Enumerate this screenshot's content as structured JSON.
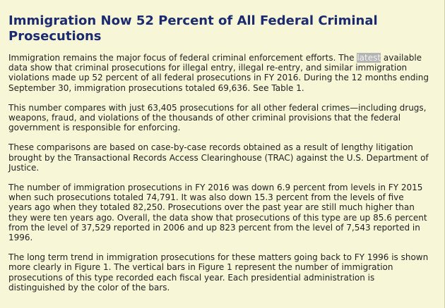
{
  "article": {
    "title": "Immigration Now 52 Percent of All Federal Criminal Prosecutions",
    "p1_before": "Immigration remains the major focus of federal criminal enforcement efforts. The ",
    "p1_highlight": "latest",
    "p1_after": " available data show that criminal prosecutions for illegal entry, illegal re-entry, and similar immigration violations made up 52 percent of all federal prosecutions in FY 2016. During the 12 months ending September 30, immigration prosecutions totaled 69,636. See Table 1.",
    "p2": "This number compares with just 63,405 prosecutions for all other federal crimes—including drugs, weapons, fraud, and violations of the thousands of other criminal provisions that the federal government is responsible for enforcing.",
    "p3": "These comparisons are based on case-by-case records obtained as a result of lengthy litigation brought by the Transactional Records Access Clearinghouse (TRAC) against the U.S. Department of Justice.",
    "p4": "The number of immigration prosecutions in FY 2016 was down 6.9 percent from levels in FY 2015 when such prosecutions totaled 74,791. It was also down 15.3 percent from the levels of five years ago when they totaled 82,250. Prosecutions over the past year are still much higher than they were ten years ago. Overall, the data show that prosecutions of this type are up 85.6 percent from the level of 37,529 reported in 2006 and up 823 percent from the level of 7,543 reported in 1996.",
    "p5": "The long term trend in immigration prosecutions for these matters going back to FY 1996 is shown more clearly in Figure 1. The vertical bars in Figure 1 represent the number of immigration prosecutions of this type recorded each fiscal year. Each presidential administration is distinguished by the color of the bars."
  },
  "colors": {
    "background": "#f7f7d8",
    "title": "#1c2a70",
    "text": "#222222",
    "selection": "#b4b4b4"
  }
}
